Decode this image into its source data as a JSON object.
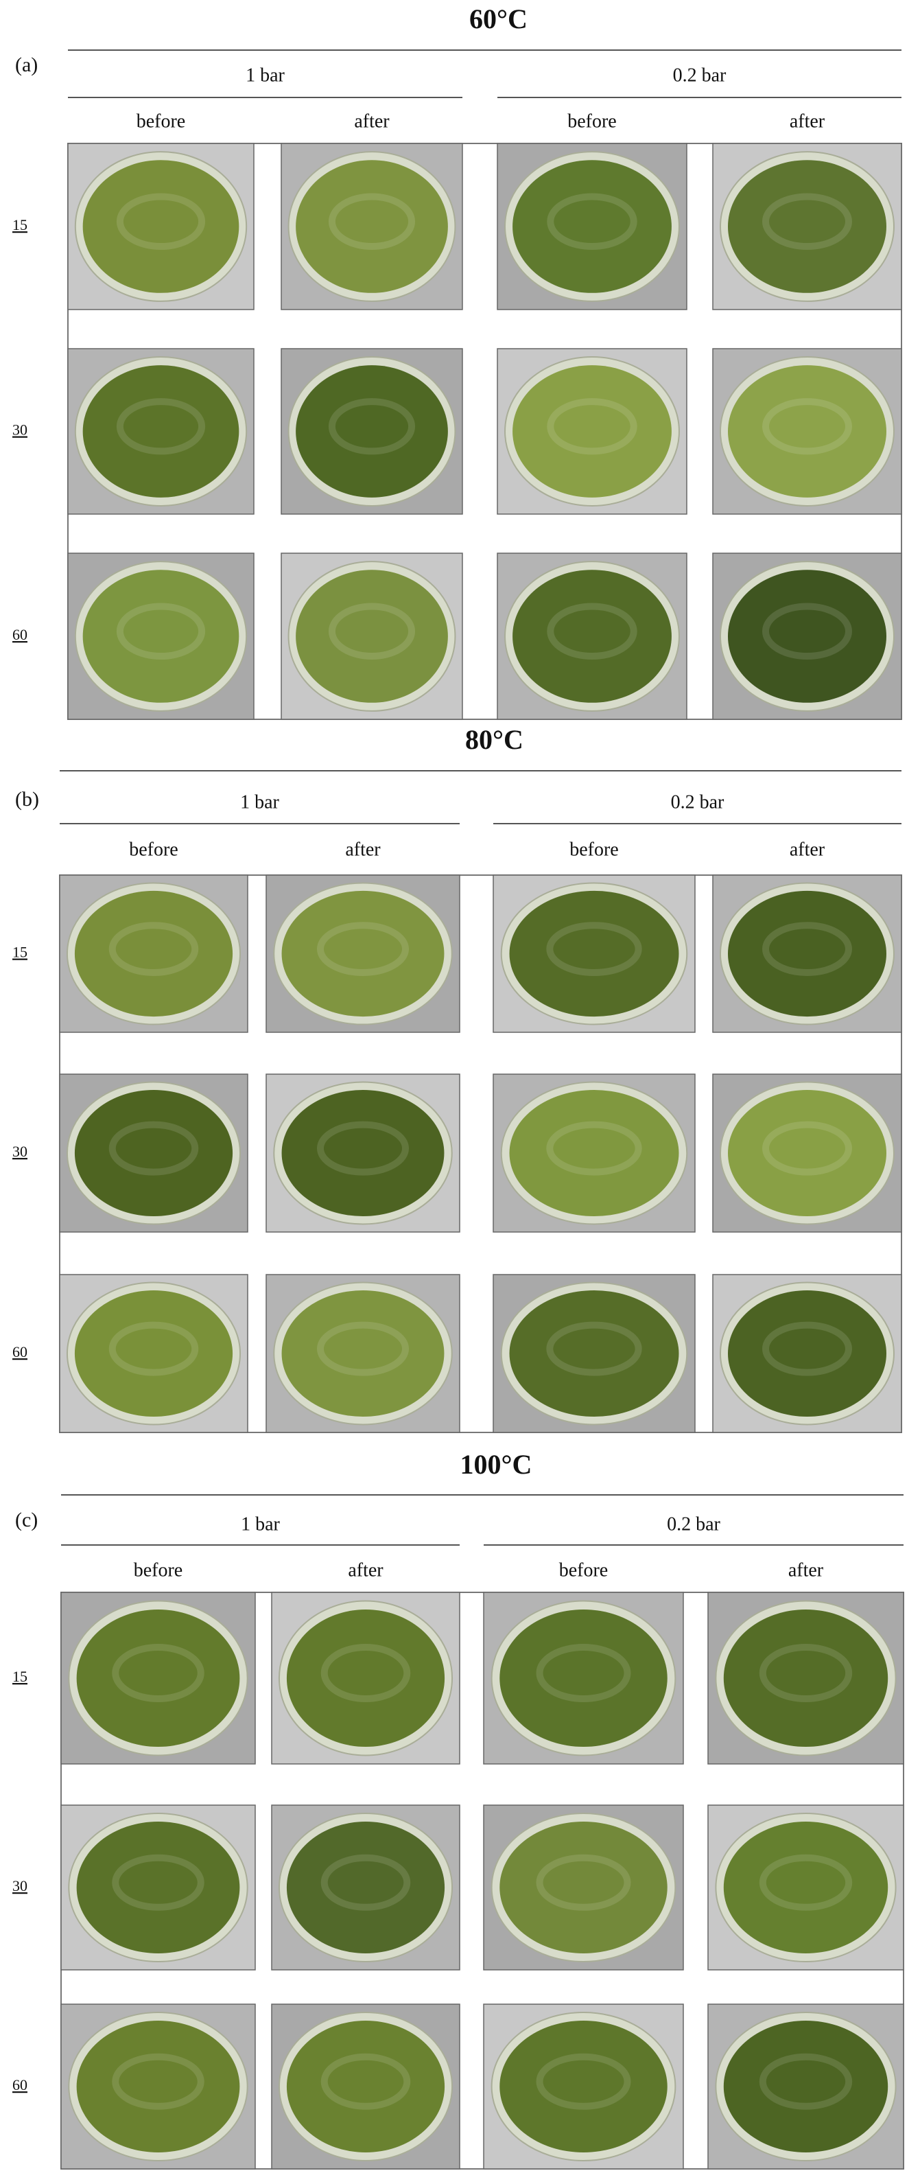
{
  "panels": [
    {
      "title": "60°C",
      "label": "(a)",
      "groups": [
        {
          "name": "1 bar",
          "columns": [
            "before",
            "after"
          ]
        },
        {
          "name": "0.2 bar",
          "columns": [
            "before",
            "after"
          ]
        }
      ],
      "rows": [
        "15",
        "30",
        "60"
      ]
    },
    {
      "title": "80°C",
      "label": "(b)",
      "groups": [
        {
          "name": "1 bar",
          "columns": [
            "before",
            "after"
          ]
        },
        {
          "name": "0.2 bar",
          "columns": [
            "before",
            "after"
          ]
        }
      ],
      "rows": [
        "15",
        "30",
        "60"
      ]
    },
    {
      "title": "100°C",
      "label": "(c)",
      "groups": [
        {
          "name": "1 bar",
          "columns": [
            "before",
            "after"
          ]
        },
        {
          "name": "0.2 bar",
          "columns": [
            "before",
            "after"
          ]
        }
      ],
      "rows": [
        "15",
        "30",
        "60"
      ]
    }
  ]
}
